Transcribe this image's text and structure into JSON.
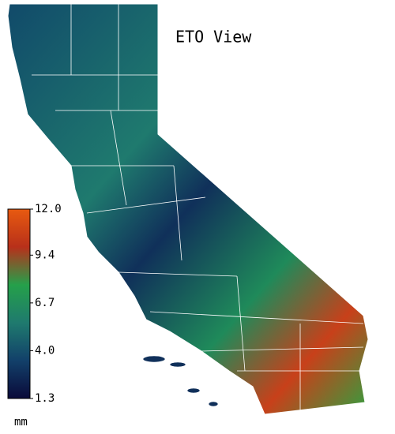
{
  "map": {
    "title": "ETO View",
    "colorbar": {
      "unit": "mm",
      "lim": [
        1.3,
        12
      ],
      "ticks": [
        {
          "value": 12,
          "label": "12.0"
        },
        9.4,
        6.7,
        {
          "value": 4,
          "label": "4.0"
        },
        1.3
      ],
      "colors": [
        "#0a0a3a",
        "#12406a",
        "#1f7a6e",
        "#25a04a",
        "#b8301a",
        "#e85a10"
      ]
    }
  }
}
